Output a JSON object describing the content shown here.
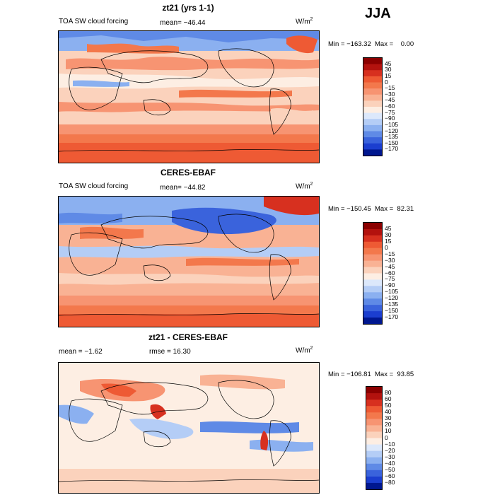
{
  "season": "JJA",
  "unit_prefix": "W/m",
  "unit_exp": "2",
  "panels": [
    {
      "title": "zt21 (yrs 1-1)",
      "left_label": "TOA SW cloud forcing",
      "mid_label": "mean=  −46.44",
      "minmax": "Min = −163.32  Max =    0.00",
      "levels": [
        "45",
        "30",
        "15",
        "0",
        "−15",
        "−30",
        "−45",
        "−60",
        "−75",
        "−90",
        "−105",
        "−120",
        "−135",
        "−150",
        "−170"
      ],
      "colors": [
        "#8b0000",
        "#b3120e",
        "#d7301f",
        "#ee5a34",
        "#f3784c",
        "#f79472",
        "#f9b294",
        "#fbd2bc",
        "#fdeee3",
        "#dce8fb",
        "#b4cdf6",
        "#8bb0f0",
        "#5f8ae6",
        "#3a63dc",
        "#1b3ecf",
        "#00178f"
      ]
    },
    {
      "title": "CERES-EBAF",
      "left_label": "TOA SW cloud forcing",
      "mid_label": "mean=  −44.82",
      "minmax": "Min = −150.45  Max =  82.31",
      "levels": [
        "45",
        "30",
        "15",
        "0",
        "−15",
        "−30",
        "−45",
        "−60",
        "−75",
        "−90",
        "−105",
        "−120",
        "−135",
        "−150",
        "−170"
      ],
      "colors": [
        "#8b0000",
        "#b3120e",
        "#d7301f",
        "#ee5a34",
        "#f3784c",
        "#f79472",
        "#f9b294",
        "#fbd2bc",
        "#fdeee3",
        "#dce8fb",
        "#b4cdf6",
        "#8bb0f0",
        "#5f8ae6",
        "#3a63dc",
        "#1b3ecf",
        "#00178f"
      ]
    },
    {
      "title": "zt21 - CERES-EBAF",
      "left_label": "mean =   −1.62",
      "mid_label": "rmse =  16.30",
      "minmax": "Min = −106.81  Max =  93.85",
      "levels": [
        "80",
        "60",
        "50",
        "40",
        "30",
        "20",
        "10",
        "0",
        "−10",
        "−20",
        "−30",
        "−40",
        "−50",
        "−60",
        "−80"
      ],
      "colors": [
        "#8b0000",
        "#b3120e",
        "#d7301f",
        "#ee5a34",
        "#f3784c",
        "#f79472",
        "#f9b294",
        "#fbd2bc",
        "#fdeee3",
        "#dce8fb",
        "#b4cdf6",
        "#8bb0f0",
        "#5f8ae6",
        "#3a63dc",
        "#1b3ecf",
        "#00178f"
      ]
    }
  ]
}
